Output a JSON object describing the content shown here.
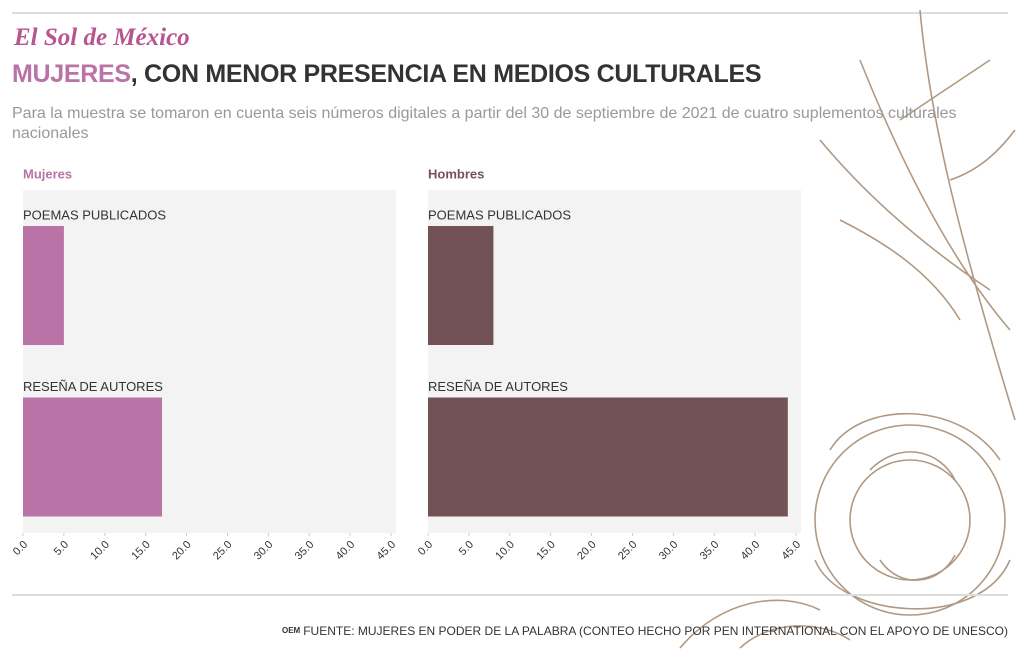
{
  "header": {
    "logo": "El Sol de México",
    "title_highlight": "MUJERES",
    "title_rest": ", CON MENOR PRESENCIA EN MEDIOS CULTURALES",
    "subtitle": "Para la muestra se tomaron en cuenta seis números digitales a partir del 30 de septiembre de 2021 de cuatro suplementos culturales nacionales"
  },
  "footer": {
    "publisher": "OEM",
    "source": "FUENTE: MUJERES EN PODER DE LA PALABRA (CONTEO HECHO POR PEN INTERNATIONAL CON EL APOYO DE UNESCO)"
  },
  "chart_data": [
    {
      "type": "bar",
      "title": "Mujeres",
      "categories": [
        "POEMAS PUBLICADOS",
        "RESEÑA DE AUTORES"
      ],
      "values": [
        5,
        17
      ],
      "color": "#b973a6",
      "xlim": [
        0,
        45
      ],
      "xticks": [
        {
          "value": 0,
          "label": "0.0"
        },
        {
          "value": 5,
          "label": "5.0"
        },
        {
          "value": 10,
          "label": "10.0"
        },
        {
          "value": 15,
          "label": "15.0"
        },
        {
          "value": 20,
          "label": "20.0"
        },
        {
          "value": 25,
          "label": "25.0"
        },
        {
          "value": 30,
          "label": "30.0"
        },
        {
          "value": 35,
          "label": "35.0"
        },
        {
          "value": 40,
          "label": "40.0"
        },
        {
          "value": 45,
          "label": "45.0"
        }
      ]
    },
    {
      "type": "bar",
      "title": "Hombres",
      "categories": [
        "POEMAS PUBLICADOS",
        "RESEÑA DE AUTORES"
      ],
      "values": [
        8,
        44
      ],
      "color": "#735256",
      "xlim": [
        0,
        45
      ],
      "xticks": [
        {
          "value": 0,
          "label": "0.0"
        },
        {
          "value": 5,
          "label": "5.0"
        },
        {
          "value": 10,
          "label": "10.0"
        },
        {
          "value": 15,
          "label": "15.0"
        },
        {
          "value": 20,
          "label": "20.0"
        },
        {
          "value": 25,
          "label": "25.0"
        },
        {
          "value": 30,
          "label": "30.0"
        },
        {
          "value": 35,
          "label": "35.0"
        },
        {
          "value": 40,
          "label": "40.0"
        },
        {
          "value": 45,
          "label": "45.0"
        }
      ]
    }
  ]
}
